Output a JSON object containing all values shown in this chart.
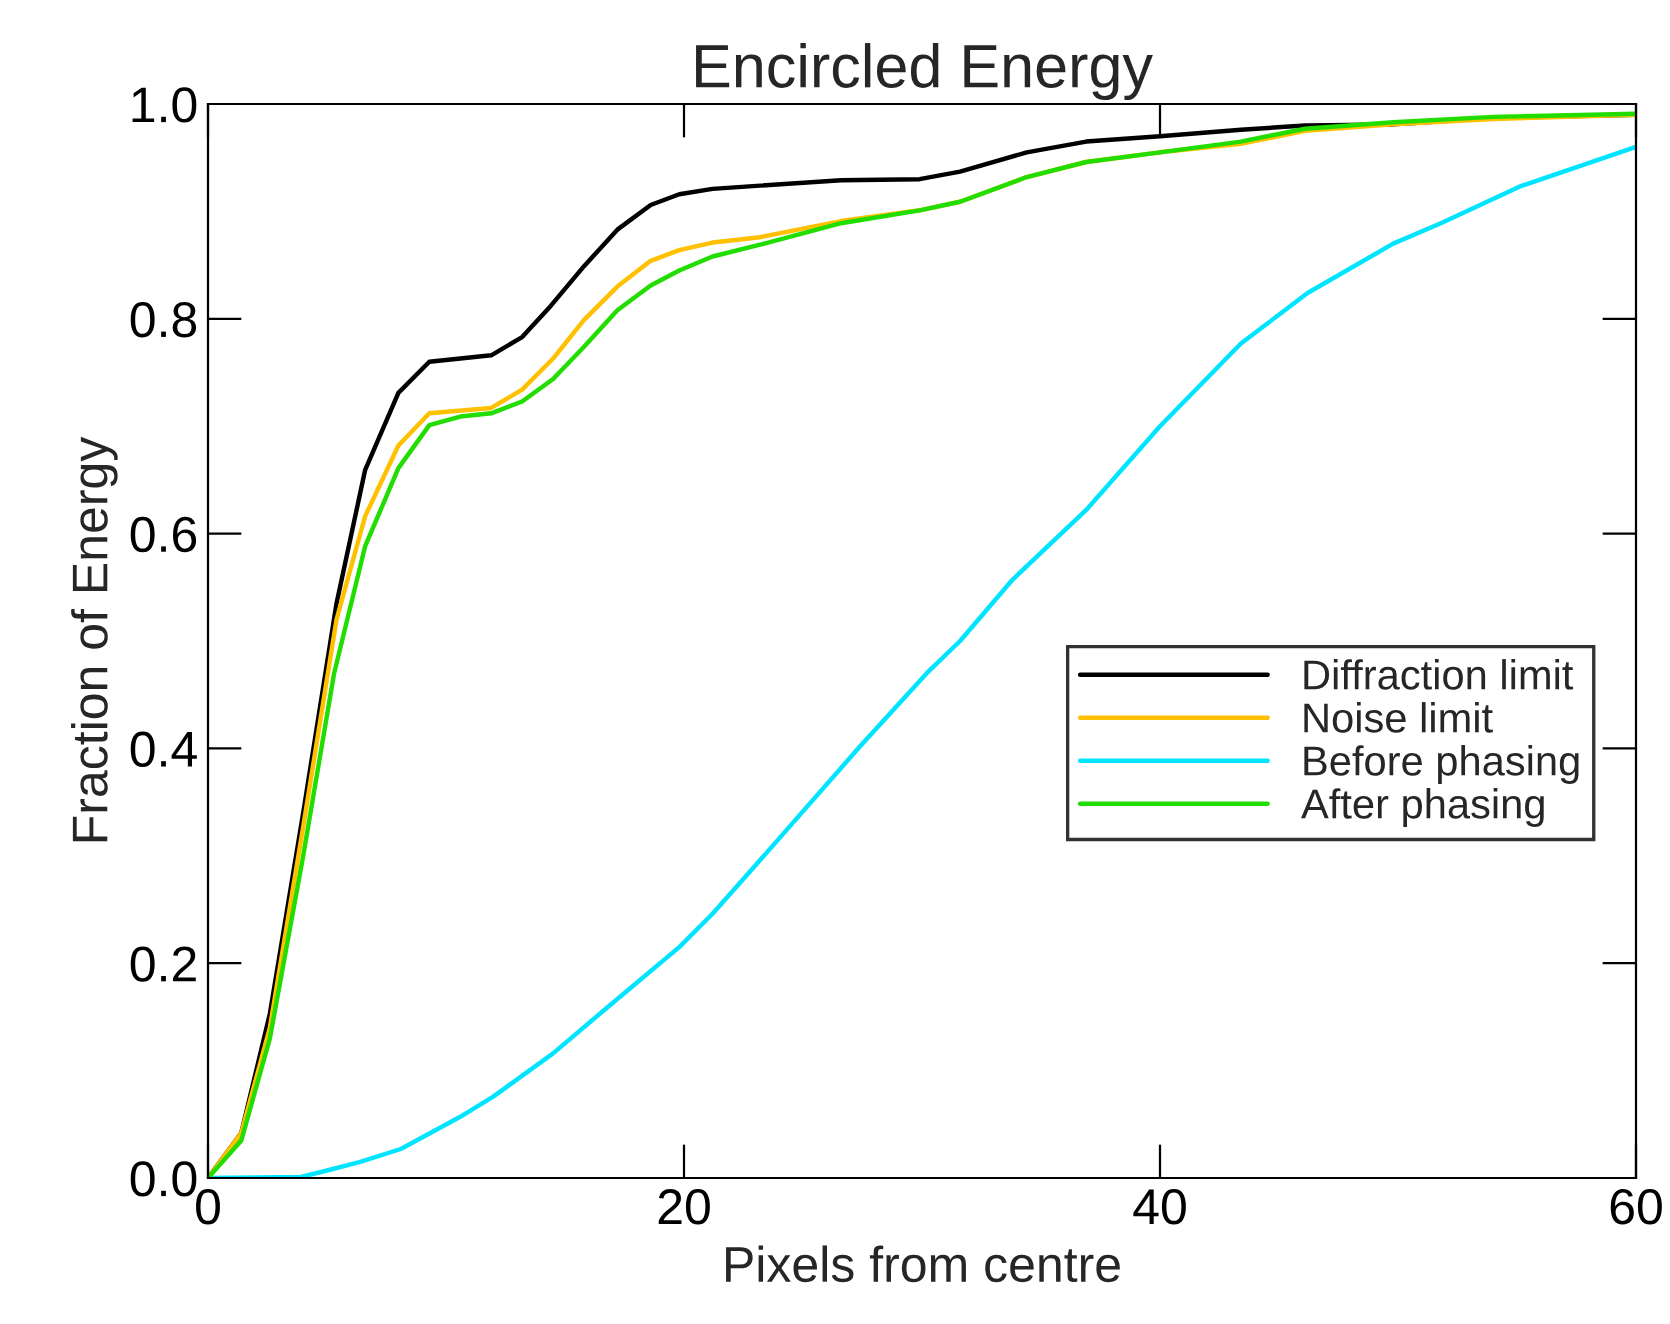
{
  "chart_data": {
    "type": "line",
    "title": "Encircled Energy",
    "xlabel": "Pixels from centre",
    "ylabel": "Fraction of Energy",
    "xlim": [
      0,
      60
    ],
    "xticks": [
      0,
      20,
      40,
      60
    ],
    "ylim": [
      0,
      1.0
    ],
    "yticks": [
      {
        "value": 0,
        "label": "0.0"
      },
      0.2,
      0.4,
      0.6,
      0.8,
      {
        "value": 1.0,
        "label": "1.0"
      }
    ],
    "grid": false,
    "legend": "right",
    "marker": "none",
    "line_style": "solid",
    "series": [
      {
        "name": "Diffraction limit",
        "color": "#000000",
        "x": [
          0,
          1.4,
          2.6,
          4.0,
          5.4,
          6.6,
          8.0,
          9.3,
          11.9,
          13.2,
          14.4,
          15.8,
          17.2,
          18.6,
          19.8,
          21.2,
          23.2,
          26.6,
          29.9,
          31.6,
          34.4,
          36.9,
          40,
          43.4,
          46.1,
          49.8,
          54,
          60
        ],
        "values": [
          0,
          0.042,
          0.153,
          0.34,
          0.535,
          0.659,
          0.731,
          0.76,
          0.766,
          0.783,
          0.812,
          0.849,
          0.883,
          0.906,
          0.916,
          0.921,
          0.924,
          0.929,
          0.93,
          0.937,
          0.955,
          0.965,
          0.97,
          0.976,
          0.98,
          0.981,
          0.987,
          0.99
        ]
      },
      {
        "name": "Noise limit",
        "color": "#ffc000",
        "x": [
          0,
          1.4,
          2.6,
          4.0,
          5.4,
          6.6,
          8.0,
          9.3,
          11.9,
          13.2,
          14.5,
          15.8,
          17.2,
          18.6,
          19.8,
          21.2,
          23.2,
          26.6,
          29.9,
          31.6,
          34.4,
          36.9,
          40,
          43.4,
          46.1,
          49.8,
          54,
          60
        ],
        "values": [
          0,
          0.042,
          0.14,
          0.327,
          0.52,
          0.616,
          0.682,
          0.712,
          0.717,
          0.734,
          0.763,
          0.799,
          0.83,
          0.854,
          0.864,
          0.871,
          0.876,
          0.891,
          0.901,
          0.909,
          0.932,
          0.946,
          0.955,
          0.963,
          0.975,
          0.981,
          0.986,
          0.99
        ]
      },
      {
        "name": "Before phasing",
        "color": "#00e5ff",
        "x": [
          0,
          3.9,
          5.0,
          6.4,
          8.1,
          10.6,
          12.0,
          14.5,
          17.0,
          19.8,
          21.2,
          23.2,
          27.4,
          30.2,
          31.6,
          33.8,
          36.9,
          40,
          43.4,
          46.2,
          49.8,
          51.8,
          55.1,
          60
        ],
        "values": [
          0,
          0.001,
          0.007,
          0.015,
          0.027,
          0.057,
          0.076,
          0.116,
          0.163,
          0.215,
          0.246,
          0.296,
          0.402,
          0.47,
          0.5,
          0.557,
          0.622,
          0.7,
          0.777,
          0.824,
          0.87,
          0.889,
          0.923,
          0.96
        ]
      },
      {
        "name": "After phasing",
        "color": "#22dd00",
        "x": [
          0,
          1.4,
          2.6,
          4.0,
          5.3,
          6.6,
          8.0,
          9.3,
          10.6,
          11.9,
          13.2,
          14.5,
          15.8,
          17.2,
          18.6,
          19.8,
          21.2,
          23.2,
          26.6,
          29.9,
          31.6,
          34.4,
          36.9,
          40,
          43.4,
          46.1,
          49.8,
          54,
          60
        ],
        "values": [
          0,
          0.035,
          0.13,
          0.3,
          0.47,
          0.588,
          0.661,
          0.701,
          0.709,
          0.712,
          0.723,
          0.744,
          0.774,
          0.808,
          0.831,
          0.845,
          0.858,
          0.869,
          0.889,
          0.901,
          0.909,
          0.932,
          0.946,
          0.955,
          0.965,
          0.977,
          0.983,
          0.988,
          0.991
        ]
      }
    ]
  }
}
